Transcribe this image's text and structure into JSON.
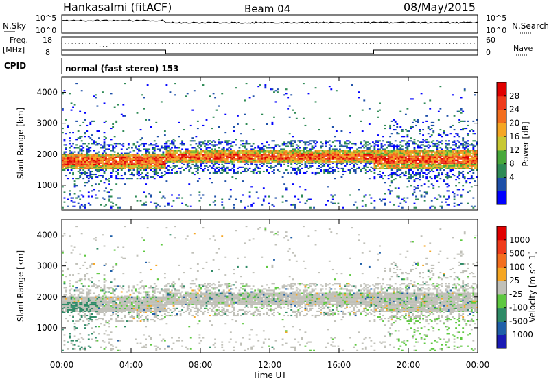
{
  "header": {
    "station": "Hankasalmi (fitACF)",
    "beam": "Beam 04",
    "date": "08/May/2015"
  },
  "panels": {
    "nsky_label": "N.Sky",
    "nsearch_label": "N.Search",
    "freq_label_1": "Freq.",
    "freq_label_2": "[MHz]",
    "nave_label": "Nave",
    "cpid_label": "CPID",
    "cpid_value": "normal (fast stereo) 153",
    "nsky_ticks": [
      "10^5",
      "10^0"
    ],
    "nsearch_ticks": [
      "10^5",
      "10^0"
    ],
    "freq_ticks": [
      "18",
      "8"
    ],
    "nave_ticks": [
      "60",
      "0"
    ]
  },
  "colorbars": {
    "power": {
      "label": "Power [dB]",
      "ticks": [
        "28",
        "24",
        "20",
        "16",
        "12",
        "8",
        "4"
      ],
      "colors": [
        "#0000ff",
        "#1d4fa8",
        "#2e8a55",
        "#48a83a",
        "#c8c832",
        "#f5a623",
        "#f36e1f",
        "#ef3b1b",
        "#e00000"
      ]
    },
    "velocity": {
      "label": "Velocity [m s^-1]",
      "ticks": [
        "1000",
        "500",
        "100",
        "25",
        "-25",
        "-100",
        "-500",
        "-1000"
      ],
      "colors": [
        "#1a1ab4",
        "#1f5fa8",
        "#2e8a66",
        "#5ec840",
        "#c0c0b8",
        "#f5a623",
        "#f36e1f",
        "#ef3b1b",
        "#e00000"
      ]
    }
  },
  "chart_data": [
    {
      "type": "heatmap",
      "name": "power",
      "ylabel": "Slant Range [km]",
      "ylim": [
        200,
        4500
      ],
      "xlim": [
        0,
        24
      ],
      "yticks": [
        1000,
        2000,
        3000,
        4000
      ],
      "gate_km": 45,
      "value_range_db": [
        0,
        30
      ],
      "dominant_echo_bands": [
        {
          "x": [
            0,
            6
          ],
          "y_center": 1750,
          "y_halfwidth": 250
        },
        {
          "x": [
            6,
            18
          ],
          "y_center": 1900,
          "y_halfwidth": 200
        },
        {
          "x": [
            18,
            24
          ],
          "y_center": 1800,
          "y_halfwidth": 300
        }
      ]
    },
    {
      "type": "heatmap",
      "name": "velocity",
      "ylabel": "Slant Range [km]",
      "ylim": [
        200,
        4500
      ],
      "xlim": [
        0,
        24
      ],
      "yticks": [
        1000,
        2000,
        3000,
        4000
      ],
      "value_range_ms": [
        -1000,
        1000
      ]
    }
  ],
  "xaxis": {
    "label": "Time UT",
    "ticks": [
      "00:00",
      "04:00",
      "08:00",
      "12:00",
      "16:00",
      "20:00",
      "00:00"
    ],
    "tick_hours": [
      0,
      4,
      8,
      12,
      16,
      20,
      24
    ]
  }
}
